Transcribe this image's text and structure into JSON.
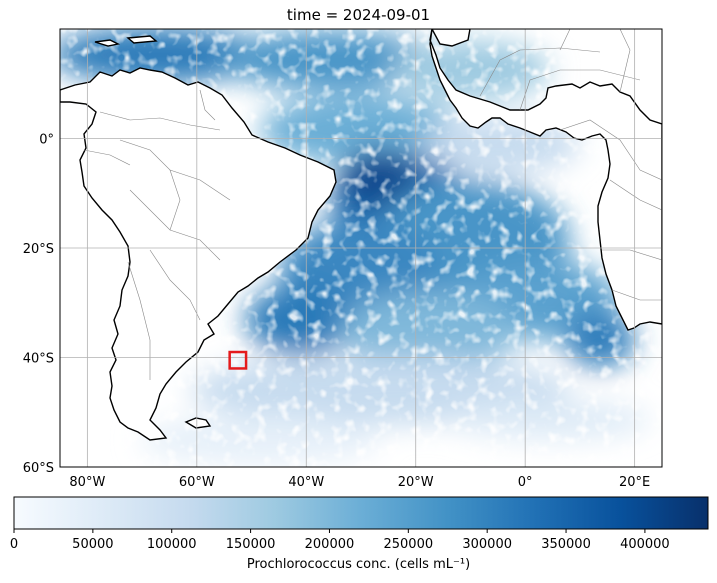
{
  "title": "time = 2024-09-01",
  "map": {
    "lon_range": [
      -85,
      25
    ],
    "lat_range": [
      -60,
      20
    ],
    "lon_ticks": [
      {
        "value": -80,
        "label": "80°W"
      },
      {
        "value": -60,
        "label": "60°W"
      },
      {
        "value": -40,
        "label": "40°W"
      },
      {
        "value": -20,
        "label": "20°W"
      },
      {
        "value": 0,
        "label": "0°"
      },
      {
        "value": 20,
        "label": "20°E"
      }
    ],
    "lat_ticks": [
      {
        "value": 0,
        "label": "0°"
      },
      {
        "value": -20,
        "label": "20°S"
      },
      {
        "value": -40,
        "label": "40°S"
      },
      {
        "value": -60,
        "label": "60°S"
      }
    ],
    "grid": true,
    "highlight_box": {
      "lon_min": -54,
      "lon_max": -51,
      "lat_min": -42,
      "lat_max": -39,
      "color": "#e41a1c"
    },
    "colormap": [
      "#f7fbff",
      "#deebf7",
      "#c6dbef",
      "#9ecae1",
      "#6baed6",
      "#4292c6",
      "#2171b5",
      "#08519c",
      "#08306b"
    ]
  },
  "colorbar": {
    "min": 0,
    "max": 440000,
    "ticks": [
      "0",
      "50000",
      "100000",
      "150000",
      "200000",
      "250000",
      "300000",
      "350000",
      "400000"
    ],
    "tick_values": [
      0,
      50000,
      100000,
      150000,
      200000,
      250000,
      300000,
      350000,
      400000
    ],
    "label": "Prochlorococcus conc. (cells mL⁻¹)"
  }
}
